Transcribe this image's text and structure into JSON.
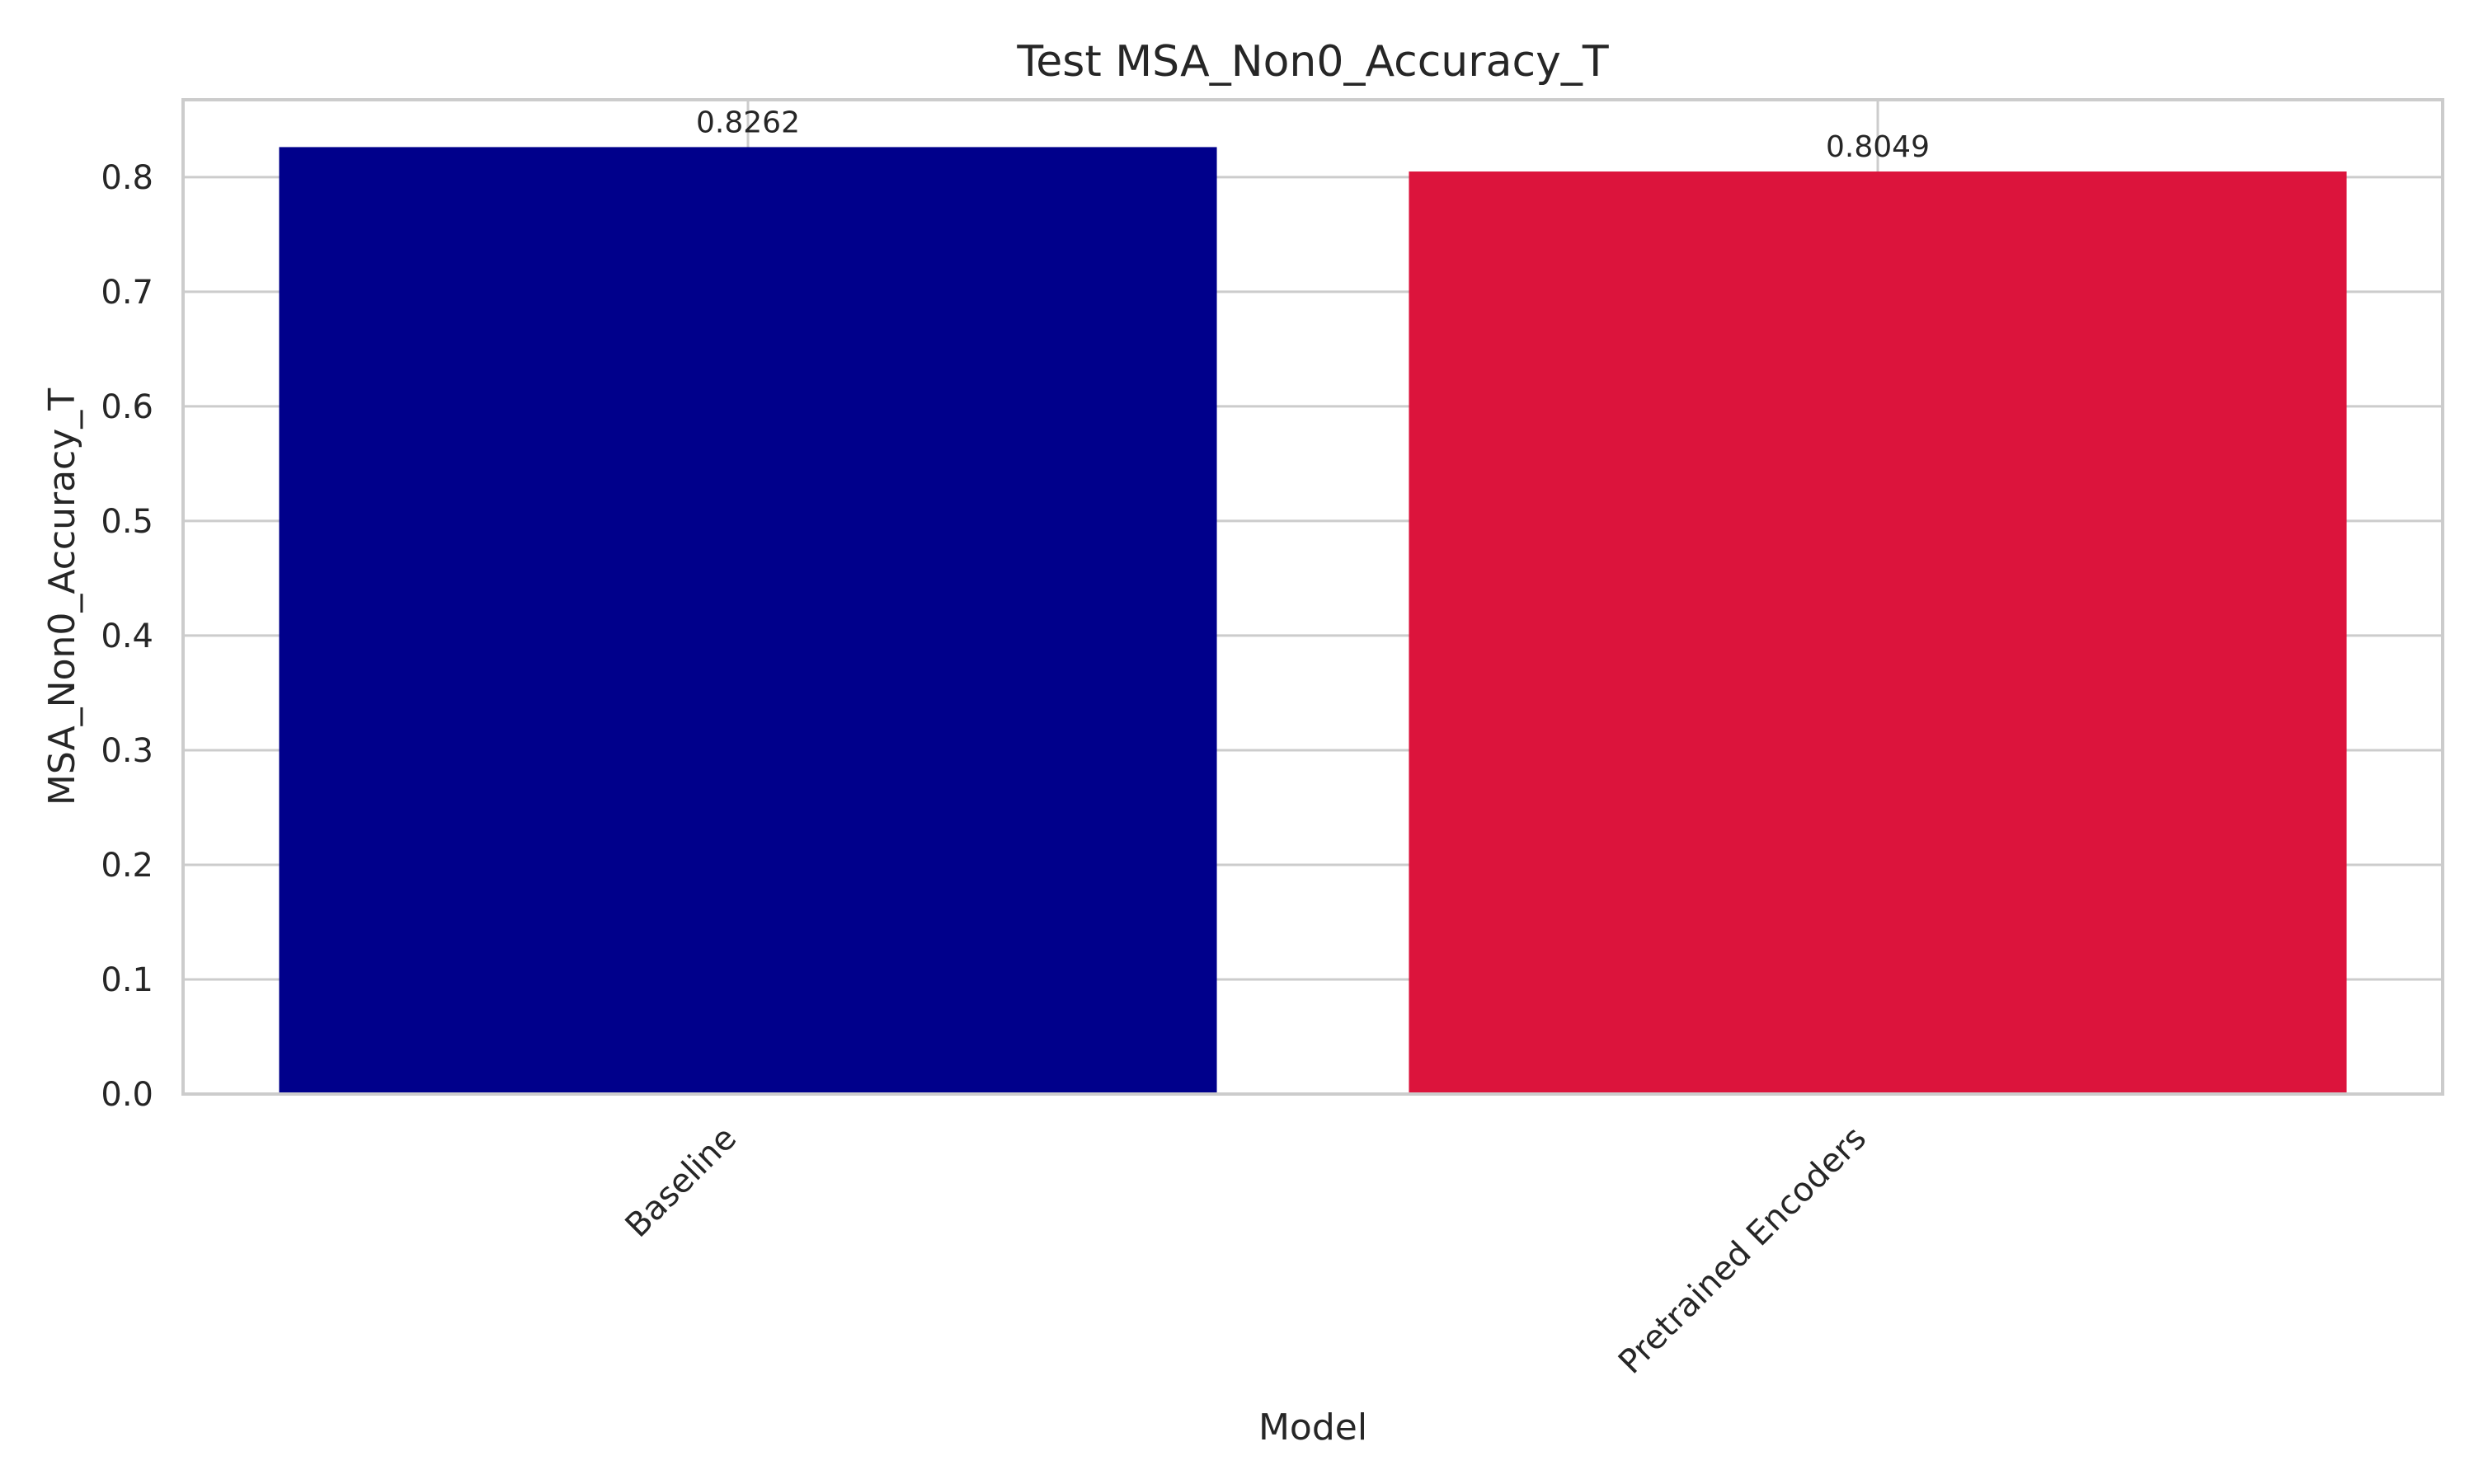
{
  "chart_data": {
    "type": "bar",
    "title": "Test MSA_Non0_Accuracy_T",
    "xlabel": "Model",
    "ylabel": "MSA_Non0_Accuracy_T",
    "categories": [
      "Baseline",
      "Pretrained Encoders"
    ],
    "values": [
      0.8262,
      0.8049
    ],
    "value_labels": [
      "0.8262",
      "0.8049"
    ],
    "colors": [
      "#00008b",
      "#dc143c"
    ],
    "ylim": [
      0,
      0.8675
    ],
    "yticks": [
      0.0,
      0.1,
      0.2,
      0.3,
      0.4,
      0.5,
      0.6,
      0.7,
      0.8
    ],
    "ytick_labels": [
      "0.0",
      "0.1",
      "0.2",
      "0.3",
      "0.4",
      "0.5",
      "0.6",
      "0.7",
      "0.8"
    ],
    "grid": true,
    "legend": "none"
  }
}
